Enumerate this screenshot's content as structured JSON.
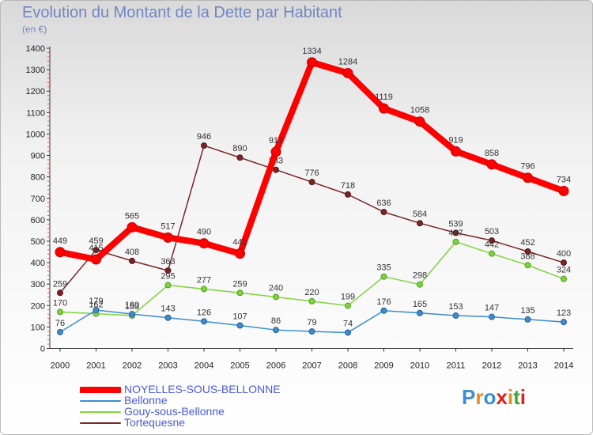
{
  "header": {
    "title": "Evolution du Montant de la Dette par Habitant",
    "subtitle": "(en €)"
  },
  "logo": {
    "text": "Proxiti",
    "colors": [
      "#3a8fd0",
      "#e98a1c",
      "#3a8fd0",
      "#e0201a",
      "#e98a1c",
      "#3fa83a",
      "#e0201a"
    ]
  },
  "chart_data": {
    "type": "line",
    "title": "Evolution du Montant de la Dette par Habitant",
    "subtitle": "(en €)",
    "xlabel": "",
    "ylabel": "",
    "ylim": [
      0,
      1400
    ],
    "yticks": [
      0,
      100,
      200,
      300,
      400,
      500,
      600,
      700,
      800,
      900,
      1000,
      1100,
      1200,
      1300,
      1400
    ],
    "x": [
      "2000",
      "2001",
      "2002",
      "2003",
      "2004",
      "2005",
      "2006",
      "2007",
      "2008",
      "2009",
      "2010",
      "2011",
      "2012",
      "2013",
      "2014"
    ],
    "grid": false,
    "legend_position": "bottom-left",
    "series": [
      {
        "name": "NOYELLES-SOUS-BELLONNE",
        "color": "#ff0000",
        "values": [
          449,
          415,
          565,
          517,
          490,
          442,
          917,
          1334,
          1284,
          1119,
          1058,
          919,
          858,
          796,
          734
        ]
      },
      {
        "name": "Bellonne",
        "color": "#3d8ccf",
        "values": [
          76,
          179,
          160,
          143,
          126,
          107,
          86,
          79,
          74,
          176,
          165,
          153,
          147,
          135,
          123
        ]
      },
      {
        "name": "Gouy-sous-Bellonne",
        "color": "#7fd43d",
        "values": [
          170,
          162,
          153,
          295,
          277,
          259,
          240,
          220,
          199,
          335,
          298,
          497,
          442,
          388,
          324
        ]
      },
      {
        "name": "Tortequesne",
        "color": "#7b2526",
        "values": [
          259,
          459,
          408,
          363,
          946,
          890,
          833,
          776,
          718,
          636,
          584,
          539,
          503,
          452,
          400
        ]
      }
    ]
  }
}
